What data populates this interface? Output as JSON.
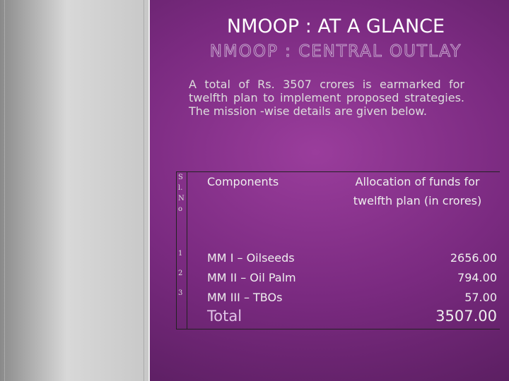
{
  "header": {
    "title": "NMOOP : AT A GLANCE",
    "subtitle": "NMOOP : CENTRAL OUTLAY"
  },
  "intro": "A total of Rs. 3507 crores is earmarked for twelfth plan to implement proposed strategies. The mission -wise details are given below.",
  "table": {
    "columns": [
      "Sl.No",
      "Components",
      "Allocation of funds for twelfth plan (in crores)"
    ],
    "rows": [
      [
        "1",
        "MM I – Oilseeds",
        "2656.00"
      ],
      [
        "2",
        "MM II – Oil Palm",
        "794.00"
      ],
      [
        "3",
        "MM III – TBOs",
        "57.00"
      ]
    ],
    "total": {
      "label": "Total",
      "value": "3507.00"
    }
  }
}
